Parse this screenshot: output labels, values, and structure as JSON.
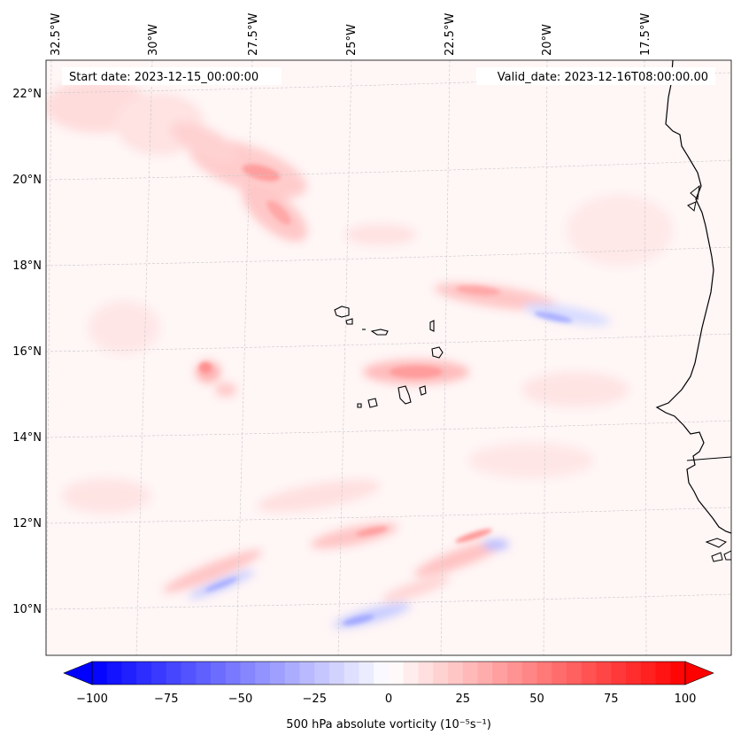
{
  "header": {
    "start_date": "Start date: 2023-12-15_00:00:00",
    "valid_date": "Valid_date: 2023-12-16T08:00:00.00"
  },
  "map": {
    "lon_labels": [
      "32.5°W",
      "30°W",
      "27.5°W",
      "25°W",
      "22.5°W",
      "20°W",
      "17.5°W"
    ],
    "lat_labels": [
      "22°N",
      "20°N",
      "18°N",
      "16°N",
      "14°N",
      "12°N",
      "10°N"
    ],
    "field_colors": {
      "negative": "#0000ff",
      "zero": "#ffffff",
      "positive": "#ff0000"
    },
    "grid": true
  },
  "colorbar": {
    "label": "500 hPa absolute vorticity (10⁻⁵s⁻¹)",
    "ticks": [
      "−100",
      "−75",
      "−50",
      "−25",
      "0",
      "25",
      "50",
      "75",
      "100"
    ],
    "range": [
      -100,
      100
    ],
    "levels": 41
  }
}
